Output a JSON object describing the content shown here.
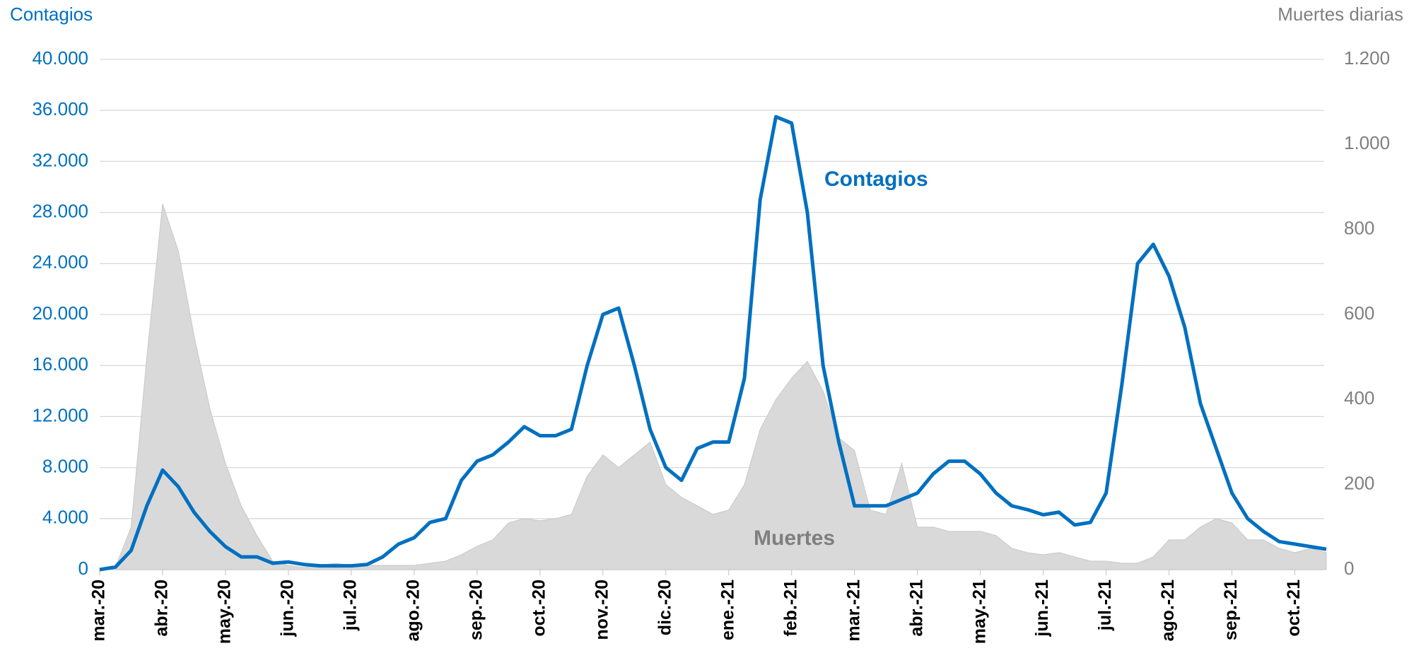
{
  "chart_data": {
    "type": "line",
    "y_label": "Contagios",
    "y2_label": "Muertes diarias",
    "categories": [
      "mar.-20",
      null,
      null,
      null,
      "abr.-20",
      null,
      null,
      null,
      "may.-20",
      null,
      null,
      null,
      "jun.-20",
      null,
      null,
      null,
      "jul.-20",
      null,
      null,
      null,
      "ago.-20",
      null,
      null,
      null,
      "sep.-20",
      null,
      null,
      null,
      "oct.-20",
      null,
      null,
      null,
      "nov.-20",
      null,
      null,
      null,
      "dic.-20",
      null,
      null,
      null,
      "ene.-21",
      null,
      null,
      null,
      "feb.-21",
      null,
      null,
      null,
      "mar.-21",
      null,
      null,
      null,
      "abr.-21",
      null,
      null,
      null,
      "may.-21",
      null,
      null,
      null,
      "jun.-21",
      null,
      null,
      null,
      "jul.-21",
      null,
      null,
      null,
      "ago.-21",
      null,
      null,
      null,
      "sep.-21",
      null,
      null,
      null,
      "oct.-21",
      null,
      null
    ],
    "series": [
      {
        "name": "Contagios",
        "color": "#0070c0",
        "axis": "y",
        "values": [
          0,
          200,
          1500,
          5000,
          7800,
          6500,
          4500,
          3000,
          1800,
          1000,
          1000,
          500,
          600,
          400,
          300,
          300,
          300,
          400,
          1000,
          2000,
          2500,
          3700,
          4000,
          7000,
          8500,
          9000,
          10000,
          11200,
          10500,
          10500,
          11000,
          16000,
          20000,
          20500,
          16000,
          11000,
          8000,
          7000,
          9500,
          10000,
          10000,
          15000,
          29000,
          35500,
          35000,
          28000,
          16000,
          10000,
          5000,
          5000,
          5000,
          5500,
          6000,
          7500,
          8500,
          8500,
          7500,
          6000,
          5000,
          4700,
          4300,
          4500,
          3500,
          3700,
          6000,
          14500,
          24000,
          25500,
          23000,
          19000,
          13000,
          9500,
          6000,
          4000,
          3000,
          2200,
          2000,
          1800,
          1600
        ]
      },
      {
        "name": "Muertes",
        "color": "#d9d9d9",
        "axis": "y2",
        "values": [
          0,
          5,
          100,
          500,
          860,
          750,
          550,
          380,
          250,
          150,
          80,
          20,
          10,
          5,
          10,
          15,
          10,
          10,
          10,
          10,
          10,
          15,
          20,
          35,
          55,
          70,
          110,
          120,
          115,
          120,
          130,
          220,
          270,
          240,
          270,
          300,
          200,
          170,
          150,
          130,
          140,
          200,
          330,
          400,
          450,
          490,
          420,
          310,
          280,
          140,
          130,
          250,
          100,
          100,
          90,
          90,
          90,
          80,
          50,
          40,
          35,
          40,
          30,
          20,
          20,
          15,
          15,
          30,
          70,
          70,
          100,
          120,
          110,
          70,
          70,
          50,
          40,
          50,
          40
        ]
      }
    ],
    "ylim": [
      0,
      40000
    ],
    "yticks": [
      0,
      {
        "value": 4000,
        "label": "4.000"
      },
      {
        "value": 8000,
        "label": "8.000"
      },
      {
        "value": 12000,
        "label": "12.000"
      },
      {
        "value": 16000,
        "label": "16.000"
      },
      {
        "value": 20000,
        "label": "20.000"
      },
      {
        "value": 24000,
        "label": "24.000"
      },
      {
        "value": 28000,
        "label": "28.000"
      },
      {
        "value": 32000,
        "label": "32.000"
      },
      {
        "value": 36000,
        "label": "36.000"
      },
      {
        "value": 40000,
        "label": "40.000"
      }
    ],
    "y2lim": [
      0,
      1200
    ],
    "y2ticks": [
      0,
      200,
      400,
      600,
      800,
      {
        "value": 1000,
        "label": "1.000"
      },
      {
        "value": 1200,
        "label": "1.200"
      }
    ],
    "grid": true
  }
}
